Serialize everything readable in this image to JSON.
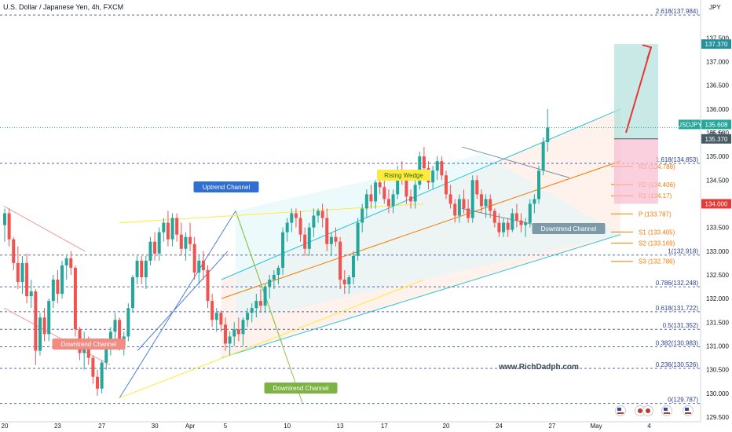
{
  "chart_data": {
    "type": "candlestick",
    "title": "U.S. Dollar / Japanese Yen, 4h, FXCM",
    "symbol": "USDJPY",
    "currency_label": "JPY",
    "watermark": "www.RichDadph.com",
    "ylim": [
      129.4,
      138.3
    ],
    "y_ticks": [
      "129.500",
      "130.000",
      "130.500",
      "131.000",
      "131.500",
      "132.000",
      "132.500",
      "133.000",
      "133.500",
      "134.000",
      "134.500",
      "135.000",
      "135.500",
      "136.000",
      "136.500",
      "137.000",
      "137.500"
    ],
    "x_ticks": [
      {
        "label": "20",
        "i": 0
      },
      {
        "label": "23",
        "i": 12
      },
      {
        "label": "27",
        "i": 22
      },
      {
        "label": "30",
        "i": 34
      },
      {
        "label": "Apr",
        "i": 42
      },
      {
        "label": "5",
        "i": 50
      },
      {
        "label": "10",
        "i": 64
      },
      {
        "label": "13",
        "i": 76
      },
      {
        "label": "17",
        "i": 86
      },
      {
        "label": "20",
        "i": 100
      },
      {
        "label": "24",
        "i": 112
      },
      {
        "label": "27",
        "i": 124
      },
      {
        "label": "May",
        "i": 134
      },
      {
        "label": "4",
        "i": 146
      }
    ],
    "candles": [
      [
        133.55,
        133.9,
        133.2,
        133.8
      ],
      [
        133.8,
        133.9,
        133.1,
        133.25
      ],
      [
        133.25,
        133.3,
        132.6,
        132.75
      ],
      [
        132.75,
        133.1,
        132.2,
        132.35
      ],
      [
        132.35,
        132.9,
        132.1,
        132.75
      ],
      [
        132.75,
        132.95,
        131.9,
        132.05
      ],
      [
        132.05,
        132.4,
        131.8,
        132.15
      ],
      [
        132.15,
        132.2,
        130.6,
        130.9
      ],
      [
        130.9,
        131.7,
        130.8,
        131.6
      ],
      [
        131.6,
        131.8,
        131.1,
        131.25
      ],
      [
        131.25,
        132.0,
        131.1,
        131.95
      ],
      [
        131.95,
        132.5,
        131.8,
        132.4
      ],
      [
        132.4,
        132.6,
        131.9,
        132.1
      ],
      [
        132.1,
        132.8,
        132.0,
        132.7
      ],
      [
        132.7,
        132.9,
        132.4,
        132.85
      ],
      [
        132.85,
        133.0,
        132.5,
        132.65
      ],
      [
        132.65,
        132.7,
        131.2,
        131.35
      ],
      [
        131.35,
        131.4,
        130.7,
        130.85
      ],
      [
        130.85,
        131.3,
        130.5,
        131.15
      ],
      [
        131.15,
        131.2,
        130.6,
        130.75
      ],
      [
        130.75,
        130.8,
        130.2,
        130.35
      ],
      [
        130.35,
        130.5,
        129.95,
        130.1
      ],
      [
        130.1,
        130.7,
        130.0,
        130.65
      ],
      [
        130.65,
        131.0,
        130.5,
        130.95
      ],
      [
        130.95,
        131.4,
        130.8,
        131.3
      ],
      [
        131.3,
        131.7,
        131.1,
        131.55
      ],
      [
        131.55,
        131.6,
        130.9,
        131.0
      ],
      [
        131.0,
        131.3,
        130.8,
        131.2
      ],
      [
        131.2,
        131.9,
        131.1,
        131.8
      ],
      [
        131.8,
        132.5,
        131.7,
        132.45
      ],
      [
        132.45,
        132.9,
        132.3,
        132.8
      ],
      [
        132.8,
        132.9,
        132.3,
        132.45
      ],
      [
        132.45,
        132.9,
        132.2,
        132.8
      ],
      [
        132.8,
        133.3,
        132.7,
        133.2
      ],
      [
        133.2,
        133.4,
        132.8,
        132.95
      ],
      [
        132.95,
        133.5,
        132.8,
        133.4
      ],
      [
        133.4,
        133.7,
        133.2,
        133.6
      ],
      [
        133.6,
        133.85,
        133.1,
        133.25
      ],
      [
        133.25,
        133.8,
        133.1,
        133.7
      ],
      [
        133.7,
        133.8,
        133.2,
        133.35
      ],
      [
        133.35,
        133.6,
        132.9,
        133.05
      ],
      [
        133.05,
        133.4,
        132.8,
        133.3
      ],
      [
        133.3,
        133.6,
        133.0,
        133.15
      ],
      [
        133.15,
        133.3,
        132.4,
        132.55
      ],
      [
        132.55,
        132.9,
        132.3,
        132.8
      ],
      [
        132.8,
        133.0,
        132.4,
        132.6
      ],
      [
        132.6,
        132.7,
        131.8,
        131.95
      ],
      [
        131.95,
        132.1,
        131.4,
        131.55
      ],
      [
        131.55,
        131.8,
        131.3,
        131.7
      ],
      [
        131.7,
        131.75,
        131.3,
        131.45
      ],
      [
        131.45,
        131.6,
        130.9,
        131.05
      ],
      [
        131.05,
        131.3,
        130.8,
        131.2
      ],
      [
        131.2,
        131.5,
        131.0,
        131.35
      ],
      [
        131.35,
        131.6,
        131.1,
        131.25
      ],
      [
        131.25,
        131.6,
        131.0,
        131.55
      ],
      [
        131.55,
        131.8,
        131.4,
        131.7
      ],
      [
        131.7,
        131.9,
        131.5,
        131.8
      ],
      [
        131.8,
        132.1,
        131.6,
        131.95
      ],
      [
        131.95,
        132.2,
        131.7,
        131.85
      ],
      [
        131.85,
        132.3,
        131.7,
        132.25
      ],
      [
        132.25,
        132.5,
        132.0,
        132.4
      ],
      [
        132.4,
        132.6,
        132.2,
        132.5
      ],
      [
        132.5,
        132.7,
        132.3,
        132.65
      ],
      [
        132.65,
        133.5,
        132.5,
        133.4
      ],
      [
        133.4,
        133.7,
        133.2,
        133.6
      ],
      [
        133.6,
        133.9,
        133.4,
        133.8
      ],
      [
        133.8,
        133.9,
        133.5,
        133.7
      ],
      [
        133.7,
        133.85,
        133.2,
        133.35
      ],
      [
        133.35,
        133.5,
        132.9,
        133.05
      ],
      [
        133.05,
        133.6,
        132.9,
        133.5
      ],
      [
        133.5,
        133.9,
        133.3,
        133.75
      ],
      [
        133.75,
        133.9,
        133.6,
        133.85
      ],
      [
        133.85,
        134.0,
        133.5,
        133.7
      ],
      [
        133.7,
        133.9,
        133.0,
        133.15
      ],
      [
        133.15,
        133.4,
        132.9,
        133.3
      ],
      [
        133.3,
        133.5,
        133.1,
        133.2
      ],
      [
        133.2,
        133.3,
        132.2,
        132.4
      ],
      [
        132.4,
        132.6,
        132.1,
        132.3
      ],
      [
        132.3,
        132.5,
        132.1,
        132.45
      ],
      [
        132.45,
        133.0,
        132.3,
        132.9
      ],
      [
        132.9,
        133.7,
        132.8,
        133.6
      ],
      [
        133.6,
        134.0,
        133.4,
        133.9
      ],
      [
        133.9,
        134.3,
        133.7,
        134.2
      ],
      [
        134.2,
        134.4,
        133.9,
        134.05
      ],
      [
        134.05,
        134.5,
        133.9,
        134.45
      ],
      [
        134.45,
        134.6,
        134.2,
        134.35
      ],
      [
        134.35,
        134.5,
        134.0,
        134.1
      ],
      [
        134.1,
        134.3,
        133.8,
        133.95
      ],
      [
        133.95,
        134.3,
        133.8,
        134.2
      ],
      [
        134.2,
        134.8,
        134.1,
        134.7
      ],
      [
        134.7,
        134.9,
        134.4,
        134.55
      ],
      [
        134.55,
        134.7,
        134.0,
        134.15
      ],
      [
        134.15,
        134.3,
        133.9,
        134.05
      ],
      [
        134.05,
        134.5,
        133.9,
        134.4
      ],
      [
        134.4,
        135.1,
        134.3,
        135.0
      ],
      [
        135.0,
        135.2,
        134.6,
        134.75
      ],
      [
        134.75,
        134.9,
        134.3,
        134.45
      ],
      [
        134.45,
        134.8,
        134.3,
        134.7
      ],
      [
        134.7,
        135.0,
        134.5,
        134.9
      ],
      [
        134.9,
        135.0,
        134.5,
        134.6
      ],
      [
        134.6,
        134.7,
        134.1,
        134.2
      ],
      [
        134.2,
        134.4,
        133.9,
        134.0
      ],
      [
        134.0,
        134.1,
        133.6,
        133.75
      ],
      [
        133.75,
        134.2,
        133.6,
        134.1
      ],
      [
        134.1,
        134.3,
        133.8,
        133.9
      ],
      [
        133.9,
        134.1,
        133.6,
        133.7
      ],
      [
        133.7,
        134.6,
        133.6,
        134.5
      ],
      [
        134.5,
        134.6,
        134.1,
        134.2
      ],
      [
        134.2,
        134.3,
        133.8,
        133.95
      ],
      [
        133.95,
        134.2,
        133.7,
        134.1
      ],
      [
        134.1,
        134.2,
        133.7,
        133.85
      ],
      [
        133.85,
        133.9,
        133.5,
        133.6
      ],
      [
        133.6,
        133.8,
        133.3,
        133.4
      ],
      [
        133.4,
        133.7,
        133.3,
        133.6
      ],
      [
        133.6,
        133.7,
        133.3,
        133.45
      ],
      [
        133.45,
        133.9,
        133.4,
        133.8
      ],
      [
        133.8,
        134.0,
        133.5,
        133.65
      ],
      [
        133.65,
        133.8,
        133.4,
        133.55
      ],
      [
        133.55,
        133.7,
        133.3,
        133.6
      ],
      [
        133.6,
        134.1,
        133.5,
        134.0
      ],
      [
        134.0,
        134.2,
        133.8,
        134.1
      ],
      [
        134.1,
        134.8,
        134.0,
        134.7
      ],
      [
        134.7,
        135.4,
        134.6,
        135.3
      ],
      [
        135.3,
        136.0,
        135.1,
        135.608
      ]
    ],
    "last_price": {
      "label": "USDJPY",
      "value": "135.608",
      "countdown": "46:20"
    },
    "target": {
      "value": "137.370"
    },
    "entry": {
      "value": "135.370"
    },
    "stop": {
      "value": "134.000"
    },
    "pivots": [
      {
        "label": "R3 (134.788)",
        "value": 134.788
      },
      {
        "label": "R2 (134.406)",
        "value": 134.406
      },
      {
        "label": "R1 (134.17)",
        "value": 134.17
      },
      {
        "label": "P (133.787)",
        "value": 133.787
      },
      {
        "label": "S1 (133.405)",
        "value": 133.405
      },
      {
        "label": "S2 (133.169)",
        "value": 133.169
      },
      {
        "label": "S3 (132.786)",
        "value": 132.786
      }
    ],
    "fib_levels": [
      {
        "label": "2.618(137.984)",
        "value": 137.984
      },
      {
        "label": "1.618(134.853)",
        "value": 134.853
      },
      {
        "label": "1(132.918)",
        "value": 132.918
      },
      {
        "label": "0.786(132.248)",
        "value": 132.248
      },
      {
        "label": "0.618(131.722)",
        "value": 131.722
      },
      {
        "label": "0.5(131.352)",
        "value": 131.352
      },
      {
        "label": "0.382(130.983)",
        "value": 130.983
      },
      {
        "label": "0.236(130.526)",
        "value": 130.526
      },
      {
        "label": "0(129.787)",
        "value": 129.787
      }
    ],
    "annotations": [
      "Uptrend Channel",
      "Rising Wedge",
      "Downtrend Channel",
      "Downtrend Channel",
      "Downtrend Channel"
    ],
    "colors": {
      "up": "#26a69a",
      "down": "#ef5350",
      "fib": "#2a3f8f",
      "pivot": "#f57c00",
      "channel": "#26c6da",
      "profit_zone": "#b2dfdb",
      "loss_zone": "#f8bbd0",
      "arrow": "#e53935",
      "axis_text": "#131722"
    }
  }
}
